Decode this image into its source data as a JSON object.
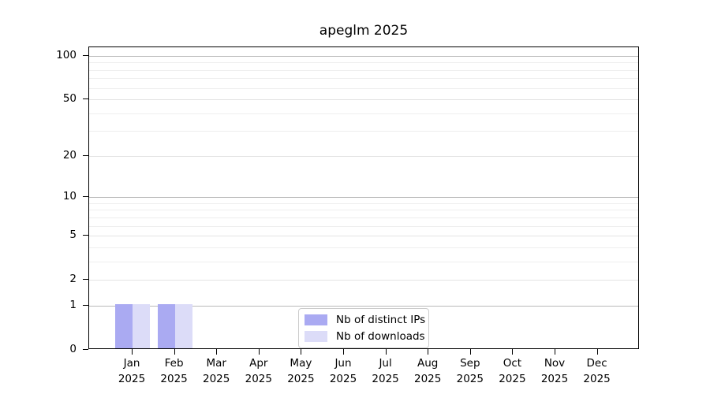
{
  "chart_data": {
    "type": "bar",
    "title": "apeglm 2025",
    "categories": [
      "Jan 2025",
      "Feb 2025",
      "Mar 2025",
      "Apr 2025",
      "May 2025",
      "Jun 2025",
      "Jul 2025",
      "Aug 2025",
      "Sep 2025",
      "Oct 2025",
      "Nov 2025",
      "Dec 2025"
    ],
    "x_months": [
      "Jan",
      "Feb",
      "Mar",
      "Apr",
      "May",
      "Jun",
      "Jul",
      "Aug",
      "Sep",
      "Oct",
      "Nov",
      "Dec"
    ],
    "x_year": "2025",
    "series": [
      {
        "name": "Nb of distinct IPs",
        "color": "#aaaaf2",
        "values": [
          1,
          1,
          0,
          0,
          0,
          0,
          0,
          0,
          0,
          0,
          0,
          0
        ]
      },
      {
        "name": "Nb of downloads",
        "color": "#dcdcf8",
        "values": [
          1,
          1,
          0,
          0,
          0,
          0,
          0,
          0,
          0,
          0,
          0,
          0
        ]
      }
    ],
    "yscale": "log1p",
    "ylim": [
      0,
      115
    ],
    "yticks": [
      0,
      1,
      2,
      5,
      10,
      20,
      50,
      100
    ],
    "yticks_minor": [
      3,
      4,
      6,
      7,
      8,
      9,
      30,
      40,
      60,
      70,
      80,
      90
    ],
    "grid": "horizontal",
    "legend_position": "lower-center-inside",
    "xlabel": "",
    "ylabel": ""
  }
}
